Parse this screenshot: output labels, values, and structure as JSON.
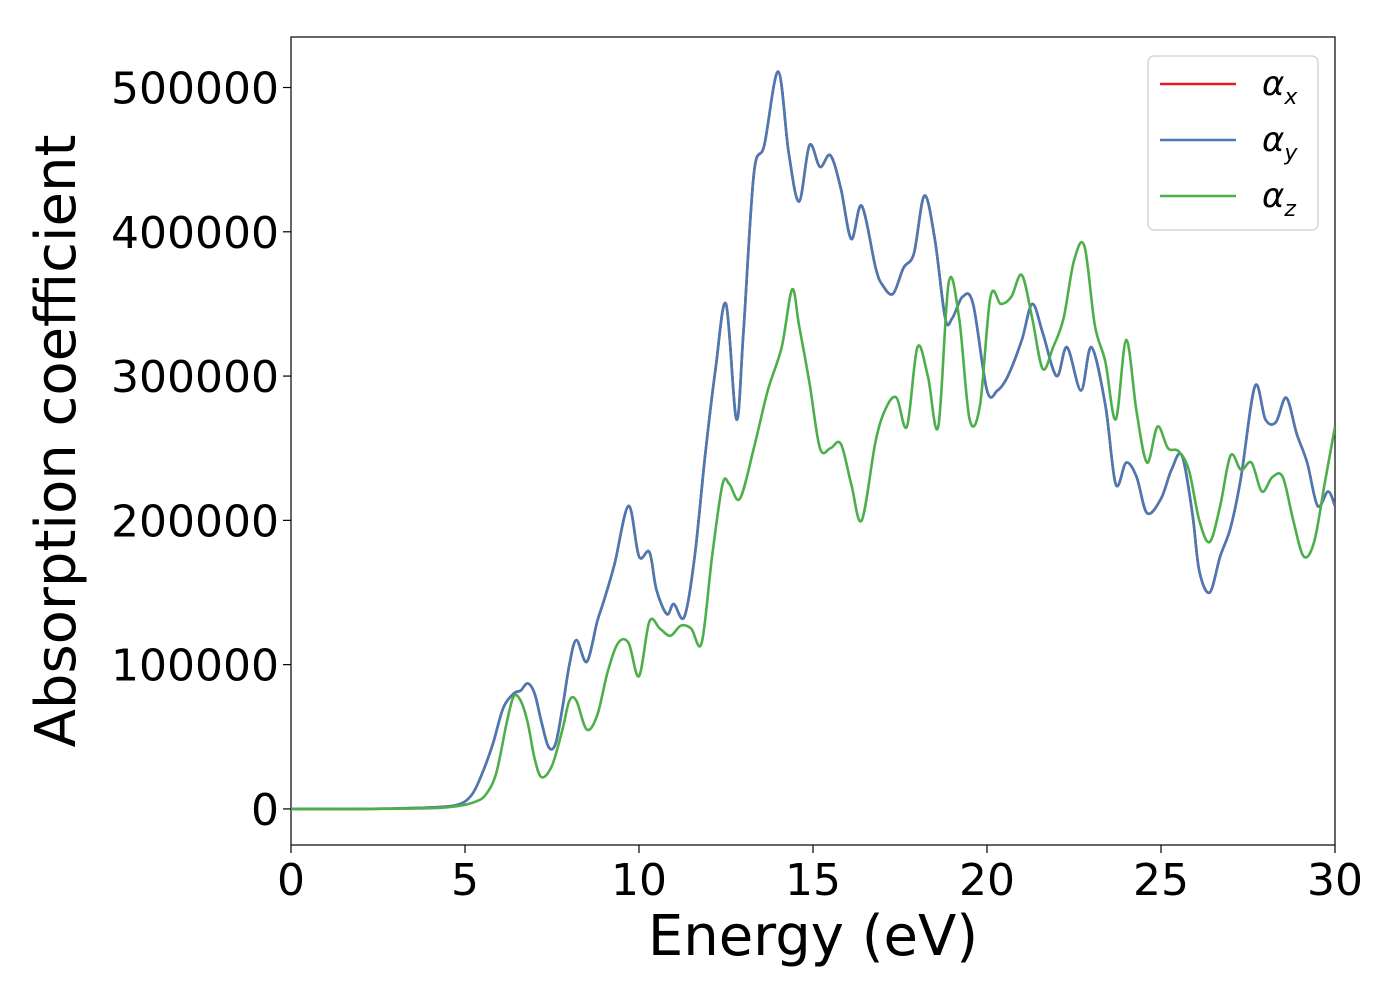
{
  "chart_data": {
    "type": "line",
    "title": "",
    "xlabel": "Energy (eV)",
    "ylabel": "Absorption coefficient",
    "xlim": [
      0,
      30
    ],
    "ylim": [
      -25000,
      535000
    ],
    "xticks": [
      0,
      5,
      10,
      15,
      20,
      25,
      30
    ],
    "xtick_labels": [
      "0",
      "5",
      "10",
      "15",
      "20",
      "25",
      "30"
    ],
    "yticks": [
      0,
      100000,
      200000,
      300000,
      400000,
      500000
    ],
    "ytick_labels": [
      "0",
      "100000",
      "200000",
      "300000",
      "400000",
      "500000"
    ],
    "grid": false,
    "legend_position": "top-right",
    "series": [
      {
        "name": "x",
        "color": "#e41a1c",
        "x": [
          0,
          2,
          4,
          4.8,
          5.2,
          5.5,
          5.8,
          6.1,
          6.4,
          6.6,
          6.8,
          7.0,
          7.2,
          7.4,
          7.6,
          7.8,
          8.0,
          8.2,
          8.5,
          8.8,
          9.0,
          9.3,
          9.7,
          10.0,
          10.3,
          10.5,
          10.8,
          11.0,
          11.3,
          11.6,
          11.9,
          12.2,
          12.5,
          12.8,
          13.0,
          13.3,
          13.6,
          14.0,
          14.3,
          14.6,
          14.9,
          15.2,
          15.5,
          15.8,
          16.1,
          16.4,
          16.8,
          17.0,
          17.3,
          17.6,
          17.9,
          18.2,
          18.5,
          18.8,
          19.0,
          19.3,
          19.6,
          20.0,
          20.3,
          20.6,
          21.0,
          21.3,
          21.6,
          22.0,
          22.3,
          22.7,
          23.0,
          23.4,
          23.7,
          24.0,
          24.3,
          24.6,
          25.0,
          25.3,
          25.6,
          25.9,
          26.1,
          26.4,
          26.7,
          27.0,
          27.3,
          27.7,
          28.0,
          28.3,
          28.6,
          28.9,
          29.2,
          29.5,
          29.8,
          30.0
        ],
        "values": [
          0,
          0,
          1000,
          3000,
          10000,
          25000,
          45000,
          70000,
          80000,
          82000,
          87000,
          80000,
          60000,
          43000,
          45000,
          70000,
          100000,
          117000,
          102000,
          130000,
          145000,
          170000,
          210000,
          175000,
          178000,
          152000,
          135000,
          142000,
          133000,
          175000,
          245000,
          305000,
          350000,
          270000,
          330000,
          440000,
          460000,
          511000,
          455000,
          421000,
          460000,
          445000,
          453000,
          430000,
          395000,
          418000,
          375000,
          363000,
          357000,
          375000,
          385000,
          425000,
          395000,
          340000,
          340000,
          355000,
          350000,
          290000,
          290000,
          300000,
          325000,
          350000,
          330000,
          300000,
          320000,
          290000,
          320000,
          280000,
          225000,
          240000,
          230000,
          205000,
          215000,
          235000,
          245000,
          205000,
          165000,
          150000,
          175000,
          195000,
          230000,
          293000,
          270000,
          268000,
          285000,
          260000,
          240000,
          210000,
          220000,
          210000
        ]
      },
      {
        "name": "y",
        "color": "#4a7ab5",
        "x": [
          0,
          2,
          4,
          4.8,
          5.2,
          5.5,
          5.8,
          6.1,
          6.4,
          6.6,
          6.8,
          7.0,
          7.2,
          7.4,
          7.6,
          7.8,
          8.0,
          8.2,
          8.5,
          8.8,
          9.0,
          9.3,
          9.7,
          10.0,
          10.3,
          10.5,
          10.8,
          11.0,
          11.3,
          11.6,
          11.9,
          12.2,
          12.5,
          12.8,
          13.0,
          13.3,
          13.6,
          14.0,
          14.3,
          14.6,
          14.9,
          15.2,
          15.5,
          15.8,
          16.1,
          16.4,
          16.8,
          17.0,
          17.3,
          17.6,
          17.9,
          18.2,
          18.5,
          18.8,
          19.0,
          19.3,
          19.6,
          20.0,
          20.3,
          20.6,
          21.0,
          21.3,
          21.6,
          22.0,
          22.3,
          22.7,
          23.0,
          23.4,
          23.7,
          24.0,
          24.3,
          24.6,
          25.0,
          25.3,
          25.6,
          25.9,
          26.1,
          26.4,
          26.7,
          27.0,
          27.3,
          27.7,
          28.0,
          28.3,
          28.6,
          28.9,
          29.2,
          29.5,
          29.8,
          30.0
        ],
        "values": [
          0,
          0,
          1000,
          3000,
          10000,
          25000,
          45000,
          70000,
          80000,
          82000,
          87000,
          80000,
          60000,
          43000,
          45000,
          70000,
          100000,
          117000,
          102000,
          130000,
          145000,
          170000,
          210000,
          175000,
          178000,
          152000,
          135000,
          142000,
          133000,
          175000,
          245000,
          305000,
          350000,
          270000,
          330000,
          440000,
          460000,
          511000,
          455000,
          421000,
          460000,
          445000,
          453000,
          430000,
          395000,
          418000,
          375000,
          363000,
          357000,
          375000,
          385000,
          425000,
          395000,
          340000,
          340000,
          355000,
          350000,
          290000,
          290000,
          300000,
          325000,
          350000,
          330000,
          300000,
          320000,
          290000,
          320000,
          280000,
          225000,
          240000,
          230000,
          205000,
          215000,
          235000,
          245000,
          205000,
          165000,
          150000,
          175000,
          195000,
          230000,
          293000,
          270000,
          268000,
          285000,
          260000,
          240000,
          210000,
          220000,
          210000
        ]
      },
      {
        "name": "z",
        "color": "#4daf4a",
        "x": [
          0,
          2,
          4,
          4.8,
          5.3,
          5.6,
          5.9,
          6.2,
          6.4,
          6.6,
          6.8,
          7.0,
          7.2,
          7.5,
          7.8,
          8.0,
          8.2,
          8.5,
          8.8,
          9.1,
          9.4,
          9.7,
          10.0,
          10.3,
          10.6,
          10.9,
          11.2,
          11.5,
          11.8,
          12.1,
          12.4,
          12.6,
          12.9,
          13.3,
          13.7,
          14.1,
          14.4,
          14.6,
          14.9,
          15.2,
          15.5,
          15.8,
          16.1,
          16.4,
          16.8,
          17.1,
          17.4,
          17.7,
          18.0,
          18.3,
          18.6,
          18.9,
          19.2,
          19.5,
          19.8,
          20.1,
          20.4,
          20.7,
          21.0,
          21.3,
          21.6,
          21.9,
          22.2,
          22.5,
          22.8,
          23.1,
          23.4,
          23.7,
          24.0,
          24.3,
          24.6,
          24.9,
          25.2,
          25.5,
          25.8,
          26.1,
          26.4,
          26.7,
          27.0,
          27.3,
          27.6,
          27.9,
          28.2,
          28.5,
          28.8,
          29.1,
          29.4,
          29.7,
          30.0
        ],
        "values": [
          0,
          0,
          500,
          2000,
          5000,
          10000,
          25000,
          60000,
          78000,
          75000,
          60000,
          35000,
          22000,
          30000,
          55000,
          75000,
          75000,
          55000,
          65000,
          95000,
          115000,
          115000,
          92000,
          130000,
          125000,
          120000,
          127000,
          125000,
          115000,
          175000,
          225000,
          225000,
          215000,
          250000,
          290000,
          320000,
          360000,
          335000,
          295000,
          250000,
          250000,
          253000,
          225000,
          200000,
          255000,
          278000,
          285000,
          265000,
          320000,
          300000,
          265000,
          365000,
          340000,
          270000,
          280000,
          355000,
          350000,
          355000,
          370000,
          340000,
          305000,
          320000,
          340000,
          380000,
          390000,
          335000,
          310000,
          270000,
          325000,
          275000,
          240000,
          265000,
          250000,
          248000,
          235000,
          200000,
          185000,
          210000,
          245000,
          235000,
          240000,
          220000,
          230000,
          230000,
          200000,
          175000,
          185000,
          225000,
          265000
        ]
      }
    ]
  }
}
